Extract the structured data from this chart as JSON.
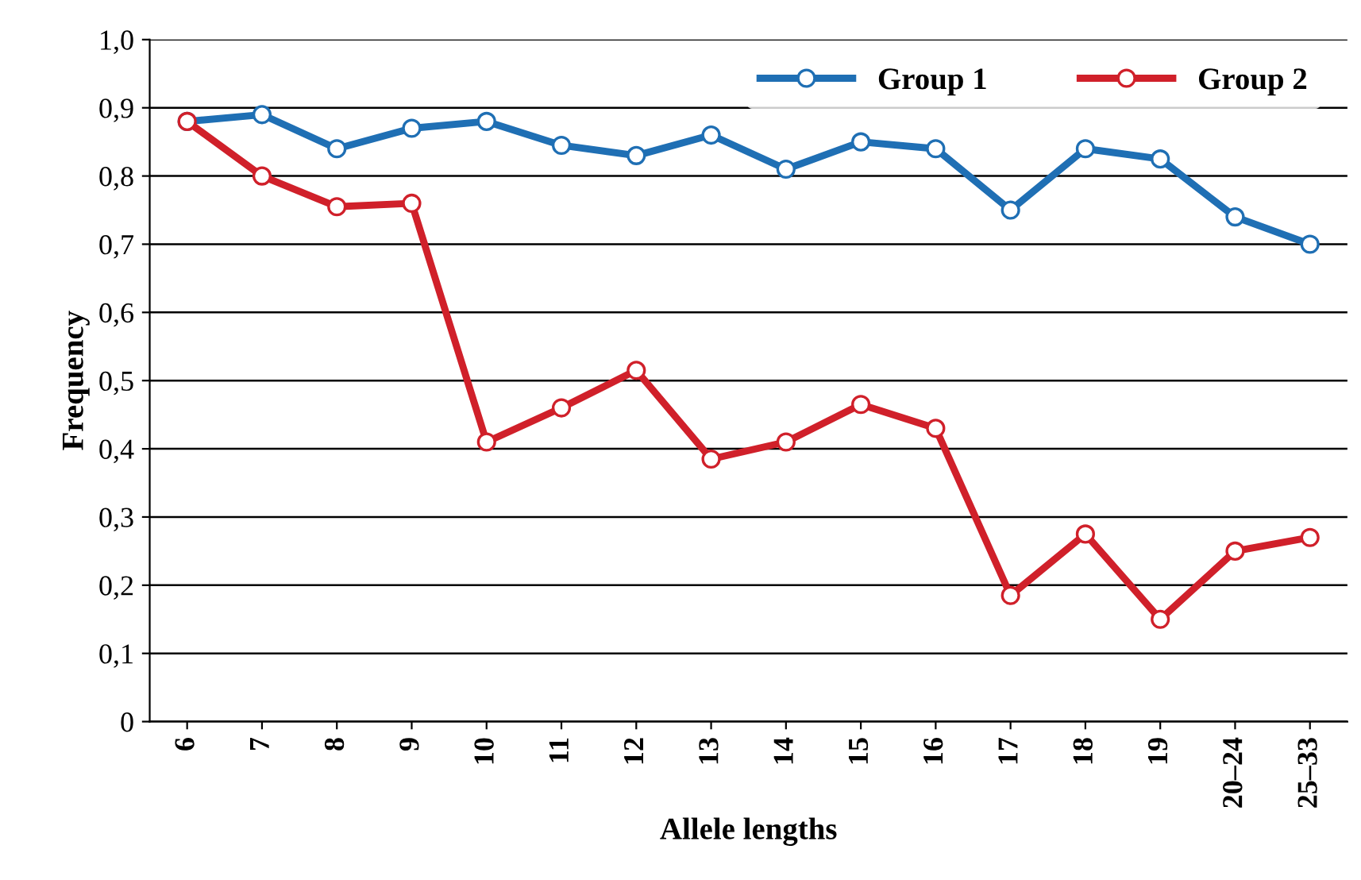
{
  "chart_data": {
    "type": "line",
    "xlabel": "Allele lengths",
    "ylabel": "Frequency",
    "categories": [
      "6",
      "7",
      "8",
      "9",
      "10",
      "11",
      "12",
      "13",
      "14",
      "15",
      "16",
      "17",
      "18",
      "19",
      "20–24",
      "25–33"
    ],
    "series": [
      {
        "name": "Group 1",
        "color": "#1f6fb4",
        "values": [
          0.88,
          0.89,
          0.84,
          0.87,
          0.88,
          0.845,
          0.83,
          0.86,
          0.81,
          0.85,
          0.84,
          0.75,
          0.84,
          0.825,
          0.74,
          0.7
        ]
      },
      {
        "name": "Group 2",
        "color": "#d0202a",
        "values": [
          0.88,
          0.8,
          0.755,
          0.76,
          0.41,
          0.46,
          0.515,
          0.385,
          0.41,
          0.465,
          0.43,
          0.185,
          0.275,
          0.15,
          0.25,
          0.27
        ]
      }
    ],
    "ylim": [
      0,
      1.0
    ],
    "yticks": [
      0,
      {
        "value": 0.1,
        "label": "0,1"
      },
      {
        "value": 0.2,
        "label": "0,2"
      },
      {
        "value": 0.3,
        "label": "0,3"
      },
      {
        "value": 0.4,
        "label": "0,4"
      },
      {
        "value": 0.5,
        "label": "0,5"
      },
      {
        "value": 0.6,
        "label": "0,6"
      },
      {
        "value": 0.7,
        "label": "0,7"
      },
      {
        "value": 0.8,
        "label": "0,8"
      },
      {
        "value": 0.9,
        "label": "0,9"
      },
      {
        "value": 1.0,
        "label": "1,0"
      }
    ],
    "grid": "y",
    "legend": "top right",
    "marker": "circle",
    "line_style": "solid"
  }
}
